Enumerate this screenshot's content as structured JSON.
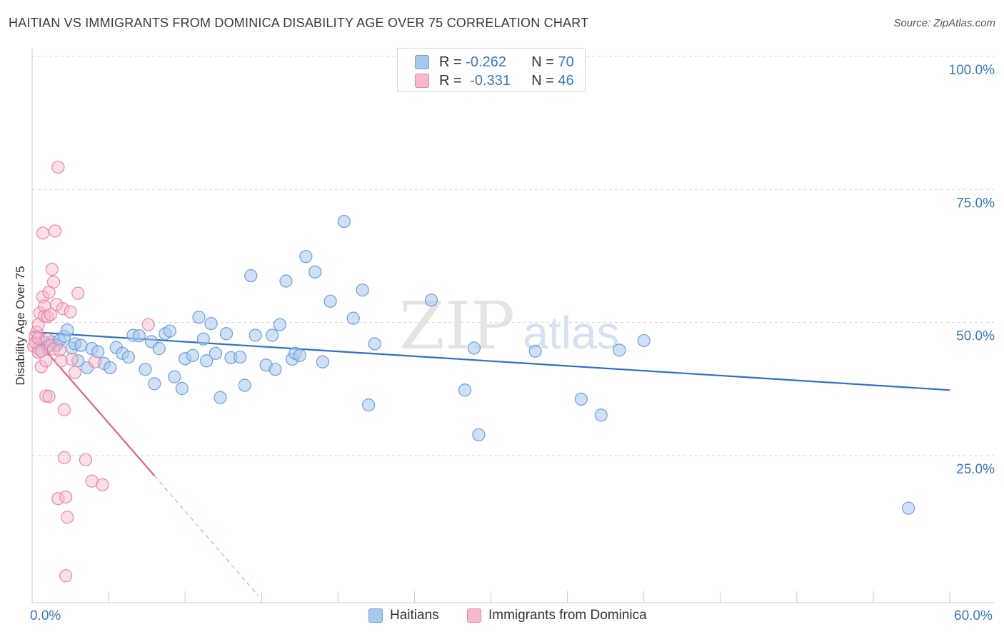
{
  "title": "HAITIAN VS IMMIGRANTS FROM DOMINICA DISABILITY AGE OVER 75 CORRELATION CHART",
  "source": "Source: ZipAtlas.com",
  "watermark": {
    "zip": "ZIP",
    "atlas": "atlas"
  },
  "legend_top": {
    "rows": [
      {
        "r_label": "R = ",
        "r_value": "-0.262",
        "n_label": "N = ",
        "n_value": "70"
      },
      {
        "r_label": "R = ",
        "r_value": "-0.331",
        "n_label": "N = ",
        "n_value": "46"
      }
    ]
  },
  "legend_bottom": {
    "series1": "Haitians",
    "series2": "Immigrants from Dominica"
  },
  "x_axis": {
    "min_label": "0.0%",
    "max_label": "60.0%"
  },
  "colors": {
    "blue_fill": "#aac8ee",
    "blue_stroke": "#6d9fd8",
    "blue_line": "#2f6fc8",
    "pink_fill": "#f6b8cc",
    "pink_stroke": "#e888a8",
    "pink_line": "#e0608a",
    "axis_text": "#3a76c4",
    "grid": "#d8d8d8"
  },
  "chart_data": {
    "type": "scatter",
    "title": "HAITIAN VS IMMIGRANTS FROM DOMINICA DISABILITY AGE OVER 75 CORRELATION CHART",
    "xlabel": "",
    "ylabel": "Disability Age Over 75",
    "xlim": [
      0,
      60
    ],
    "ylim": [
      0,
      105
    ],
    "y_ticks": [
      {
        "value": 100,
        "label": "100.0%"
      },
      {
        "value": 75,
        "label": "75.0%"
      },
      {
        "value": 50,
        "label": "50.0%"
      },
      {
        "value": 25,
        "label": "25.0%"
      }
    ],
    "series": [
      {
        "name": "Haitians",
        "r": -0.262,
        "n": 70,
        "trend": {
          "x": [
            0,
            60
          ],
          "y": [
            50.6,
            39.7
          ]
        },
        "points": [
          [
            0.4,
            47.5
          ],
          [
            0.8,
            48.7
          ],
          [
            1.0,
            47.8
          ],
          [
            1.3,
            48.8
          ],
          [
            1.6,
            48.1
          ],
          [
            1.8,
            49.0
          ],
          [
            2.1,
            49.8
          ],
          [
            2.3,
            51.0
          ],
          [
            2.6,
            47.6
          ],
          [
            2.8,
            48.4
          ],
          [
            3.0,
            45.2
          ],
          [
            3.2,
            48.1
          ],
          [
            3.6,
            43.9
          ],
          [
            3.9,
            47.5
          ],
          [
            4.3,
            46.9
          ],
          [
            4.7,
            44.7
          ],
          [
            5.1,
            43.9
          ],
          [
            5.5,
            47.7
          ],
          [
            5.9,
            46.6
          ],
          [
            6.3,
            45.9
          ],
          [
            6.6,
            50.0
          ],
          [
            7.0,
            49.9
          ],
          [
            7.4,
            43.6
          ],
          [
            7.8,
            48.8
          ],
          [
            8.0,
            40.9
          ],
          [
            8.3,
            47.5
          ],
          [
            8.7,
            50.3
          ],
          [
            9.0,
            50.8
          ],
          [
            9.3,
            42.2
          ],
          [
            9.8,
            40.0
          ],
          [
            10.0,
            45.6
          ],
          [
            10.5,
            46.2
          ],
          [
            10.9,
            53.4
          ],
          [
            11.2,
            49.3
          ],
          [
            11.4,
            45.2
          ],
          [
            11.7,
            52.2
          ],
          [
            12.0,
            46.6
          ],
          [
            12.3,
            38.3
          ],
          [
            12.7,
            50.3
          ],
          [
            13.0,
            45.8
          ],
          [
            13.6,
            45.9
          ],
          [
            13.9,
            40.6
          ],
          [
            14.3,
            61.2
          ],
          [
            14.6,
            50.0
          ],
          [
            15.3,
            44.4
          ],
          [
            15.7,
            50.0
          ],
          [
            15.9,
            43.6
          ],
          [
            16.2,
            52.0
          ],
          [
            16.6,
            60.2
          ],
          [
            17.0,
            45.5
          ],
          [
            17.2,
            46.6
          ],
          [
            17.5,
            46.2
          ],
          [
            17.9,
            64.8
          ],
          [
            18.5,
            61.9
          ],
          [
            19.0,
            45.0
          ],
          [
            19.5,
            56.4
          ],
          [
            20.4,
            71.4
          ],
          [
            21.0,
            53.2
          ],
          [
            21.6,
            58.5
          ],
          [
            22.0,
            36.9
          ],
          [
            22.4,
            48.4
          ],
          [
            26.1,
            56.6
          ],
          [
            28.3,
            39.7
          ],
          [
            28.9,
            47.6
          ],
          [
            29.2,
            31.3
          ],
          [
            32.9,
            47.0
          ],
          [
            35.9,
            38.0
          ],
          [
            37.2,
            35.0
          ],
          [
            38.4,
            47.2
          ],
          [
            40.0,
            49.0
          ],
          [
            57.3,
            17.5
          ]
        ]
      },
      {
        "name": "Immigrants from Dominica",
        "r": -0.331,
        "n": 46,
        "trend": {
          "x": [
            0,
            8.0,
            14.8
          ],
          "y": [
            50.0,
            23.6,
            1.0
          ],
          "dashed_from_x": 8.0
        },
        "points": [
          [
            0.1,
            48.0
          ],
          [
            0.2,
            49.8
          ],
          [
            0.2,
            48.6
          ],
          [
            0.3,
            50.6
          ],
          [
            0.4,
            49.4
          ],
          [
            0.4,
            52.0
          ],
          [
            0.4,
            46.8
          ],
          [
            0.5,
            54.2
          ],
          [
            0.6,
            47.0
          ],
          [
            0.6,
            44.1
          ],
          [
            0.7,
            69.2
          ],
          [
            0.7,
            57.2
          ],
          [
            0.8,
            53.6
          ],
          [
            0.8,
            55.5
          ],
          [
            0.9,
            45.2
          ],
          [
            0.9,
            38.6
          ],
          [
            1.0,
            49.2
          ],
          [
            1.0,
            53.5
          ],
          [
            1.1,
            58.1
          ],
          [
            1.1,
            38.5
          ],
          [
            1.2,
            48.1
          ],
          [
            1.2,
            53.9
          ],
          [
            1.3,
            62.4
          ],
          [
            1.4,
            60.0
          ],
          [
            1.4,
            47.4
          ],
          [
            1.5,
            69.6
          ],
          [
            1.6,
            55.8
          ],
          [
            1.7,
            81.6
          ],
          [
            1.7,
            19.3
          ],
          [
            1.8,
            47.2
          ],
          [
            1.9,
            45.2
          ],
          [
            2.0,
            55.0
          ],
          [
            2.1,
            27.0
          ],
          [
            2.1,
            36.0
          ],
          [
            2.2,
            4.8
          ],
          [
            2.2,
            19.6
          ],
          [
            2.3,
            15.8
          ],
          [
            2.5,
            54.4
          ],
          [
            2.8,
            43.0
          ],
          [
            3.0,
            57.9
          ],
          [
            3.5,
            26.6
          ],
          [
            3.9,
            22.6
          ],
          [
            4.6,
            21.9
          ],
          [
            7.6,
            52.0
          ],
          [
            4.1,
            45.0
          ],
          [
            2.6,
            45.5
          ]
        ]
      }
    ]
  }
}
